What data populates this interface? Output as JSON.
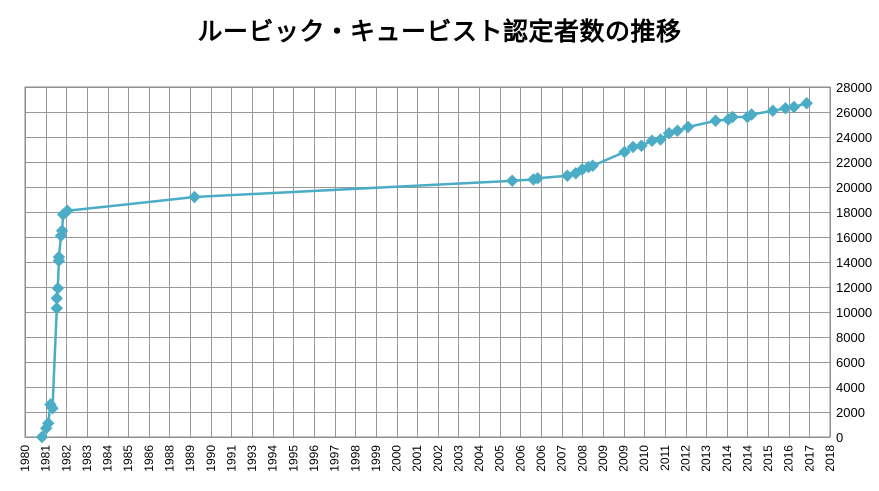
{
  "chart_data": {
    "type": "line",
    "title": "ルービック・キュービスト認定者数の推移",
    "xlabel": "",
    "ylabel": "",
    "xlim": [
      1980.0,
      2018.0
    ],
    "ylim": [
      0,
      28000
    ],
    "y_ticks": [
      0,
      2000,
      4000,
      6000,
      8000,
      10000,
      12000,
      14000,
      16000,
      18000,
      20000,
      22000,
      24000,
      26000,
      28000
    ],
    "y_tick_labels": [
      "0",
      "2000",
      "4000",
      "6000",
      "8000",
      "10000",
      "12000",
      "14000",
      "16000",
      "18000",
      "20000",
      "22000",
      "24000",
      "26000",
      "28000"
    ],
    "x_tick_labels": [
      "1980",
      "1981",
      "1982",
      "1983",
      "1984",
      "1985",
      "1986",
      "1988",
      "1989",
      "1990",
      "1991",
      "1993",
      "1994",
      "1995",
      "1996",
      "1997",
      "1998",
      "1999",
      "2000",
      "2001",
      "2002",
      "2003",
      "2004",
      "2005",
      "2006",
      "2006",
      "2007",
      "2008",
      "2009",
      "2009",
      "2010",
      "2011",
      "2012",
      "2013",
      "2014",
      "2014",
      "2015",
      "2016",
      "2017",
      "2018"
    ],
    "grid": true,
    "legend": "none",
    "series": [
      {
        "name": "認定者数",
        "color": "#4BACC6",
        "marker": "diamond",
        "x": [
          1980.8,
          1981.0,
          1981.1,
          1981.2,
          1981.3,
          1981.5,
          1981.5,
          1981.55,
          1981.6,
          1981.6,
          1981.7,
          1981.75,
          1981.8,
          1982.0,
          1988.0,
          2003.0,
          2004.0,
          2004.2,
          2005.6,
          2006.0,
          2006.3,
          2006.6,
          2006.8,
          2008.3,
          2008.7,
          2009.1,
          2009.6,
          2010.0,
          2010.4,
          2010.8,
          2011.3,
          2012.6,
          2013.2,
          2013.4,
          2014.1,
          2014.3,
          2015.3,
          2015.9,
          2016.3,
          2016.9
        ],
        "values": [
          0,
          700,
          1100,
          2600,
          2300,
          10300,
          11100,
          11900,
          14100,
          14400,
          16100,
          16500,
          17800,
          18100,
          19200,
          20500,
          20600,
          20700,
          20900,
          21100,
          21400,
          21600,
          21700,
          22800,
          23200,
          23300,
          23700,
          23800,
          24300,
          24500,
          24800,
          25300,
          25400,
          25600,
          25600,
          25800,
          26100,
          26300,
          26400,
          26700
        ]
      }
    ]
  }
}
